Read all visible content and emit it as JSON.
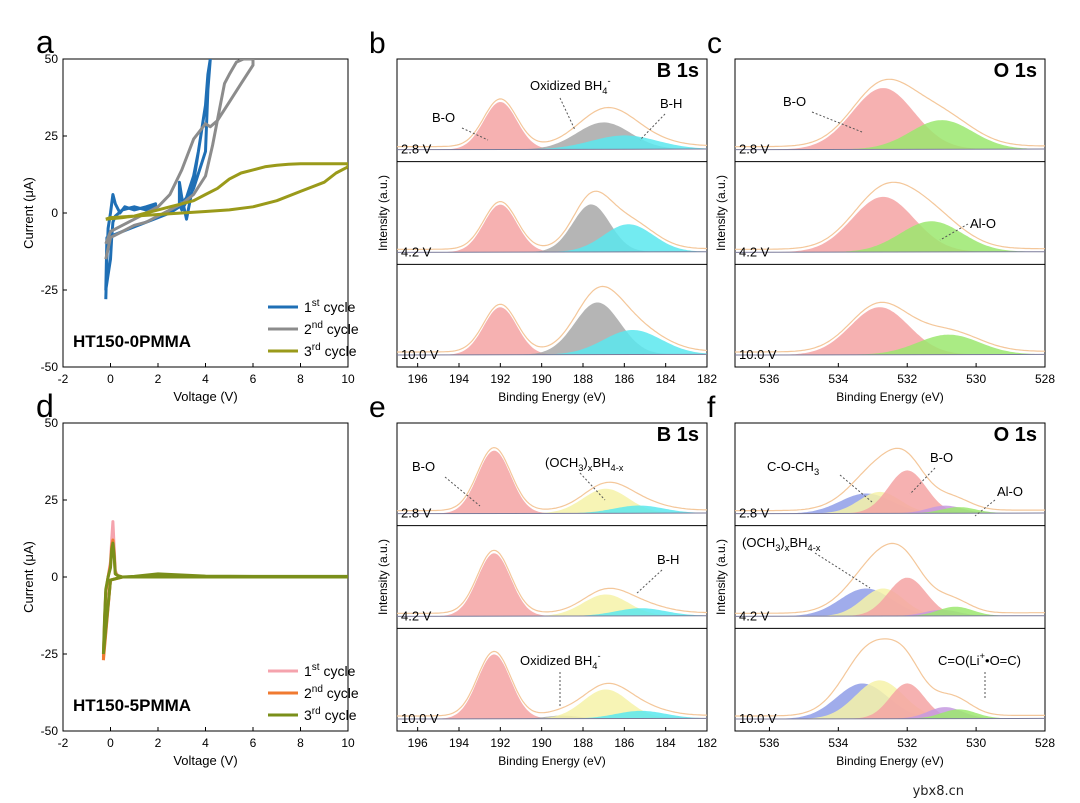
{
  "watermark": "ybx8.cn",
  "cycle_legend": {
    "c1": "1st cycle",
    "c2": "2nd cycle",
    "c3": "3rd cycle"
  },
  "cycle_colors": {
    "a": [
      "#1f6fb5",
      "#8c8c8c",
      "#9a9a1a"
    ],
    "d": [
      "#f5a3ad",
      "#f07a30",
      "#7a8f1a"
    ]
  },
  "xps_colors": {
    "BO": "#f4a3a3",
    "BH": "#5ae8ef",
    "ox": "#a8a8a8",
    "och": "#f6f2a8",
    "AlO": "#9be86f",
    "COCH": "#8f9ee8",
    "CO": "#c59ae0",
    "env": "#f4c79a"
  },
  "chart_data": [
    {
      "id": "a",
      "type": "line",
      "panel_label": "a",
      "xlabel": "Voltage (V)",
      "ylabel": "Current (μA)",
      "xlim": [
        -2,
        10
      ],
      "ylim": [
        -50,
        50
      ],
      "xticks": [
        -2,
        0,
        2,
        4,
        6,
        8,
        10
      ],
      "yticks": [
        -50,
        -25,
        0,
        25,
        50
      ],
      "sample_label": "HT150-0PMMA",
      "series": [
        {
          "name": "1st cycle",
          "x": [
            -0.2,
            -0.15,
            -0.1,
            0,
            0.1,
            0.2,
            0.4,
            0.6,
            1,
            1.5,
            1.9,
            1.9,
            1.5,
            1,
            0.5,
            0.2,
            0.1,
            0.05,
            0,
            -0.1,
            -0.2,
            -0.15,
            0.5,
            1.5,
            2.5,
            2.9,
            2.9,
            3,
            3.2,
            3.5,
            3.8,
            4,
            4.1,
            4.2,
            4.1,
            3.9,
            3.7,
            3.5,
            3.2,
            3,
            2.95,
            3,
            3.5,
            4,
            4.1
          ],
          "y": [
            -28,
            -15,
            -5,
            0,
            6,
            3,
            0,
            2,
            1,
            2,
            3,
            2,
            1,
            2,
            1,
            -1,
            -3,
            -8,
            -15,
            -20,
            -25,
            -8,
            -6,
            -3,
            0,
            2,
            10,
            5,
            -2,
            10,
            25,
            35,
            45,
            50,
            40,
            30,
            20,
            12,
            5,
            3,
            2,
            1,
            8,
            20,
            40
          ]
        },
        {
          "name": "2nd cycle",
          "x": [
            -0.2,
            0,
            0.5,
            1,
            1.5,
            2,
            2.5,
            3,
            3.5,
            4,
            4.3,
            4.6,
            4.8,
            5,
            5.3,
            5.6,
            5.9,
            6,
            6,
            5.5,
            5,
            4.5,
            4.2,
            4,
            3.5,
            3,
            2.5,
            2,
            1.5,
            1,
            0.5,
            0,
            -0.2
          ],
          "y": [
            -15,
            -8,
            -6,
            -4,
            -3,
            -1,
            1,
            3,
            6,
            12,
            22,
            34,
            42,
            45,
            49,
            50,
            50,
            50,
            48,
            42,
            36,
            30,
            28,
            29,
            24,
            14,
            6,
            2,
            0,
            -2,
            -4,
            -6,
            -10
          ]
        },
        {
          "name": "3rd cycle",
          "x": [
            -0.2,
            0.5,
            1,
            1.5,
            2,
            2.5,
            3,
            3.5,
            4,
            4.5,
            5,
            5.5,
            6,
            6.5,
            7,
            7.5,
            8,
            8.5,
            9,
            9.5,
            10,
            10,
            9.5,
            9,
            8,
            7,
            6,
            5,
            4,
            3,
            2,
            1,
            0,
            -0.2
          ],
          "y": [
            -2,
            -1.5,
            -1,
            0,
            1,
            2,
            3,
            4,
            6,
            8,
            11,
            13,
            14,
            15,
            15.5,
            15.8,
            16,
            16,
            16,
            16,
            16,
            15,
            13,
            10,
            7,
            4,
            2,
            1,
            0.5,
            0,
            -0.5,
            -1,
            -1.5,
            -2
          ]
        }
      ]
    },
    {
      "id": "b",
      "type": "area",
      "panel_label": "b",
      "title": "B 1s",
      "xlabel": "Binding Energy (eV)",
      "ylabel": "Intensity (a.u.)",
      "xlim": [
        197,
        182
      ],
      "xticks": [
        196,
        194,
        192,
        190,
        188,
        186,
        184,
        182
      ],
      "rows": [
        {
          "voltage": "2.8 V",
          "labels": [
            "B-O",
            "Oxidized BH4-",
            "B-H"
          ],
          "components": [
            {
              "name": "B-O",
              "center": 192.0,
              "height": 0.62,
              "width": 0.8
            },
            {
              "name": "Oxidized BH4-",
              "center": 187.0,
              "height": 0.35,
              "width": 1.3
            },
            {
              "name": "B-H",
              "center": 186.0,
              "height": 0.18,
              "width": 1.6
            }
          ]
        },
        {
          "voltage": "4.2 V",
          "components": [
            {
              "name": "B-O",
              "center": 192.0,
              "height": 0.62,
              "width": 0.8
            },
            {
              "name": "Oxidized BH4-",
              "center": 187.6,
              "height": 0.62,
              "width": 0.9
            },
            {
              "name": "B-H",
              "center": 185.8,
              "height": 0.36,
              "width": 1.2
            }
          ]
        },
        {
          "voltage": "10.0 V",
          "components": [
            {
              "name": "B-O",
              "center": 192.0,
              "height": 0.62,
              "width": 0.8
            },
            {
              "name": "Oxidized BH4-",
              "center": 187.3,
              "height": 0.68,
              "width": 1.1
            },
            {
              "name": "B-H",
              "center": 185.6,
              "height": 0.32,
              "width": 1.4
            }
          ]
        }
      ]
    },
    {
      "id": "c",
      "type": "area",
      "panel_label": "c",
      "title": "O 1s",
      "xlabel": "Binding Energy (eV)",
      "ylabel": "Intensity (a.u.)",
      "xlim": [
        537,
        528
      ],
      "xticks": [
        536,
        534,
        532,
        530,
        528
      ],
      "rows": [
        {
          "voltage": "2.8 V",
          "labels": [
            "B-O"
          ],
          "components": [
            {
              "name": "B-O",
              "center": 532.7,
              "height": 0.8,
              "width": 0.9
            },
            {
              "name": "Al-O",
              "center": 531.0,
              "height": 0.38,
              "width": 0.9
            }
          ]
        },
        {
          "voltage": "4.2 V",
          "labels": [
            "Al-O"
          ],
          "components": [
            {
              "name": "B-O",
              "center": 532.7,
              "height": 0.72,
              "width": 0.9
            },
            {
              "name": "Al-O",
              "center": 531.3,
              "height": 0.4,
              "width": 0.9
            }
          ]
        },
        {
          "voltage": "10.0 V",
          "components": [
            {
              "name": "B-O",
              "center": 532.8,
              "height": 0.62,
              "width": 0.85
            },
            {
              "name": "Al-O",
              "center": 530.8,
              "height": 0.26,
              "width": 0.9
            }
          ]
        }
      ]
    },
    {
      "id": "d",
      "type": "line",
      "panel_label": "d",
      "xlabel": "Voltage (V)",
      "ylabel": "Current (μA)",
      "xlim": [
        -2,
        10
      ],
      "ylim": [
        -50,
        50
      ],
      "xticks": [
        -2,
        0,
        2,
        4,
        6,
        8,
        10
      ],
      "yticks": [
        -50,
        -25,
        0,
        25,
        50
      ],
      "sample_label": "HT150-5PMMA",
      "series": [
        {
          "name": "1st cycle",
          "x": [
            -0.3,
            -0.25,
            -0.2,
            -0.1,
            0,
            0.05,
            0.1,
            0.15,
            0.2,
            0.3,
            0.5,
            1,
            2,
            4,
            6,
            8,
            10,
            10,
            8,
            5,
            2,
            1,
            0.5,
            0,
            -0.3
          ],
          "y": [
            -26,
            -15,
            -5,
            0,
            5,
            12,
            18,
            10,
            2,
            0.5,
            0,
            0,
            0.5,
            0,
            0,
            0,
            0,
            0,
            0,
            0,
            0,
            0,
            0,
            -1,
            -26
          ]
        },
        {
          "name": "2nd cycle",
          "x": [
            -0.3,
            -0.25,
            -0.2,
            -0.1,
            0,
            0.05,
            0.1,
            0.15,
            0.2,
            0.3,
            0.5,
            1,
            2,
            4,
            6,
            8,
            10,
            10,
            8,
            5,
            2,
            1,
            0.5,
            0,
            -0.3
          ],
          "y": [
            -27,
            -14,
            -5,
            0,
            4,
            10,
            12,
            8,
            1,
            0.5,
            0,
            0,
            0.6,
            0,
            0,
            0,
            0,
            0,
            0,
            0,
            0,
            0,
            0,
            -1,
            -27
          ]
        },
        {
          "name": "3rd cycle",
          "x": [
            -0.3,
            -0.25,
            -0.2,
            -0.1,
            0,
            0.05,
            0.1,
            0.15,
            0.2,
            0.3,
            0.5,
            1,
            2,
            4,
            6,
            8,
            10,
            10,
            8,
            5,
            2,
            1,
            0.5,
            0,
            -0.3
          ],
          "y": [
            -25,
            -13,
            -4,
            0,
            3,
            9,
            11,
            7,
            1,
            0.5,
            0,
            0.2,
            1,
            0.3,
            0.2,
            0.2,
            0.2,
            0,
            0,
            0,
            0,
            0,
            0,
            -1,
            -25
          ]
        }
      ]
    },
    {
      "id": "e",
      "type": "area",
      "panel_label": "e",
      "title": "B 1s",
      "xlabel": "Binding Energy (eV)",
      "ylabel": "Intensity (a.u.)",
      "xlim": [
        197,
        182
      ],
      "xticks": [
        196,
        194,
        192,
        190,
        188,
        186,
        184,
        182
      ],
      "rows": [
        {
          "voltage": "2.8 V",
          "labels": [
            "B-O",
            "(OCH3)xBH4-x"
          ],
          "components": [
            {
              "name": "B-O",
              "center": 192.3,
              "height": 0.82,
              "width": 0.8
            },
            {
              "name": "(OCH3)xBH4-x",
              "center": 186.9,
              "height": 0.32,
              "width": 1.1
            },
            {
              "name": "B-H",
              "center": 185.3,
              "height": 0.1,
              "width": 1.2
            }
          ]
        },
        {
          "voltage": "4.2 V",
          "labels": [
            "B-H"
          ],
          "components": [
            {
              "name": "B-O",
              "center": 192.3,
              "height": 0.82,
              "width": 0.8
            },
            {
              "name": "(OCH3)xBH4-x",
              "center": 186.9,
              "height": 0.28,
              "width": 1.1
            },
            {
              "name": "B-H",
              "center": 185.2,
              "height": 0.1,
              "width": 1.2
            }
          ]
        },
        {
          "voltage": "10.0 V",
          "labels": [
            "Oxidized BH4-"
          ],
          "components": [
            {
              "name": "B-O",
              "center": 192.3,
              "height": 0.84,
              "width": 0.8
            },
            {
              "name": "Oxidized BH4-",
              "center": 189.0,
              "height": 0.04,
              "width": 0.8
            },
            {
              "name": "(OCH3)xBH4-x",
              "center": 186.9,
              "height": 0.38,
              "width": 1.1
            },
            {
              "name": "B-H",
              "center": 185.2,
              "height": 0.1,
              "width": 1.2
            }
          ]
        }
      ]
    },
    {
      "id": "f",
      "type": "area",
      "panel_label": "f",
      "title": "O 1s",
      "xlabel": "Binding Energy (eV)",
      "ylabel": "Intensity (a.u.)",
      "xlim": [
        537,
        528
      ],
      "xticks": [
        536,
        534,
        532,
        530,
        528
      ],
      "rows": [
        {
          "voltage": "2.8 V",
          "labels": [
            "C-O-CH3",
            "B-O",
            "Al-O"
          ],
          "components": [
            {
              "name": "C-O-CH3",
              "center": 533.2,
              "height": 0.26,
              "width": 0.75
            },
            {
              "name": "(OCH3)xBH4-x",
              "center": 532.8,
              "height": 0.28,
              "width": 0.6
            },
            {
              "name": "B-O",
              "center": 532.0,
              "height": 0.56,
              "width": 0.55
            },
            {
              "name": "C=O(Li+•O=C)",
              "center": 530.9,
              "height": 0.1,
              "width": 0.5
            },
            {
              "name": "Al-O",
              "center": 530.5,
              "height": 0.08,
              "width": 0.5
            }
          ]
        },
        {
          "voltage": "4.2 V",
          "labels": [
            "(OCH3)xBH4-x"
          ],
          "components": [
            {
              "name": "C-O-CH3",
              "center": 533.2,
              "height": 0.36,
              "width": 0.75
            },
            {
              "name": "(OCH3)xBH4-x",
              "center": 532.7,
              "height": 0.36,
              "width": 0.6
            },
            {
              "name": "B-O",
              "center": 532.0,
              "height": 0.5,
              "width": 0.55
            },
            {
              "name": "C=O(Li+•O=C)",
              "center": 531.0,
              "height": 0.08,
              "width": 0.5
            },
            {
              "name": "Al-O",
              "center": 530.6,
              "height": 0.12,
              "width": 0.5
            }
          ]
        },
        {
          "voltage": "10.0 V",
          "labels": [
            "C=O(Li+•O=C)"
          ],
          "components": [
            {
              "name": "C-O-CH3",
              "center": 533.3,
              "height": 0.46,
              "width": 0.75
            },
            {
              "name": "(OCH3)xBH4-x",
              "center": 532.8,
              "height": 0.5,
              "width": 0.7
            },
            {
              "name": "B-O",
              "center": 532.0,
              "height": 0.46,
              "width": 0.5
            },
            {
              "name": "C=O(Li+•O=C)",
              "center": 530.9,
              "height": 0.15,
              "width": 0.5
            },
            {
              "name": "Al-O",
              "center": 530.5,
              "height": 0.12,
              "width": 0.5
            }
          ]
        }
      ]
    }
  ]
}
